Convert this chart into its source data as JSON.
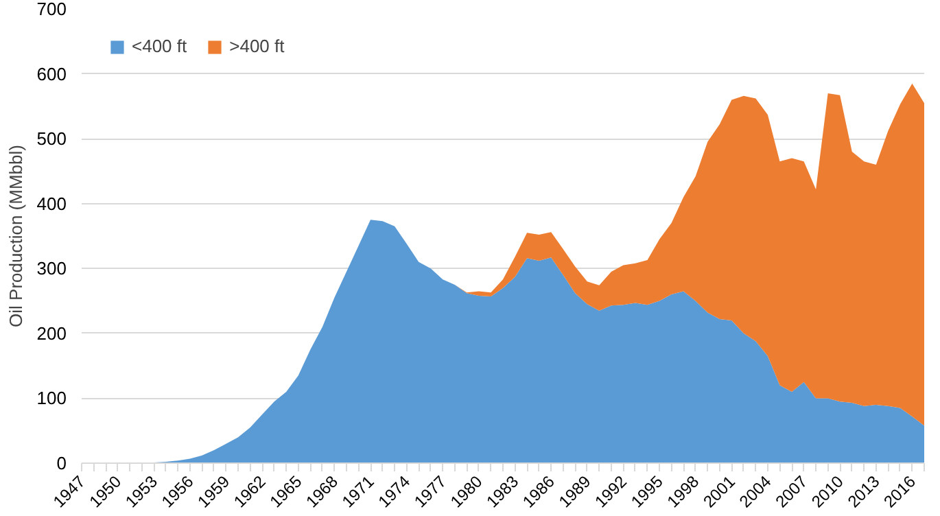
{
  "chart_data": {
    "type": "area",
    "stacked": true,
    "ylabel": "Oil Production (MMbbl)",
    "x": [
      1947,
      1948,
      1949,
      1950,
      1951,
      1952,
      1953,
      1954,
      1955,
      1956,
      1957,
      1958,
      1959,
      1960,
      1961,
      1962,
      1963,
      1964,
      1965,
      1966,
      1967,
      1968,
      1969,
      1970,
      1971,
      1972,
      1973,
      1974,
      1975,
      1976,
      1977,
      1978,
      1979,
      1980,
      1981,
      1982,
      1983,
      1984,
      1985,
      1986,
      1987,
      1988,
      1989,
      1990,
      1991,
      1992,
      1993,
      1994,
      1995,
      1996,
      1997,
      1998,
      1999,
      2000,
      2001,
      2002,
      2003,
      2004,
      2005,
      2006,
      2007,
      2008,
      2009,
      2010,
      2011,
      2012,
      2013,
      2014,
      2015,
      2016,
      2017
    ],
    "series": [
      {
        "name": "<400 ft",
        "color": "#5b9bd5",
        "values": [
          0,
          0,
          0,
          0,
          0,
          0,
          1,
          2,
          4,
          7,
          12,
          20,
          30,
          40,
          55,
          75,
          95,
          110,
          135,
          175,
          210,
          255,
          295,
          335,
          375,
          373,
          365,
          338,
          310,
          300,
          283,
          275,
          262,
          258,
          257,
          270,
          287,
          316,
          312,
          317,
          290,
          262,
          245,
          235,
          243,
          244,
          247,
          244,
          250,
          260,
          265,
          250,
          232,
          222,
          220,
          200,
          188,
          165,
          120,
          110,
          125,
          100,
          100,
          95,
          93,
          88,
          90,
          88,
          85,
          72,
          58
        ]
      },
      {
        "name": ">400 ft",
        "color": "#ed7d31",
        "values": [
          0,
          0,
          0,
          0,
          0,
          0,
          0,
          0,
          0,
          0,
          0,
          0,
          0,
          0,
          0,
          0,
          0,
          0,
          0,
          0,
          0,
          0,
          0,
          0,
          0,
          0,
          0,
          0,
          0,
          0,
          0,
          0,
          1,
          7,
          6,
          13,
          31,
          39,
          40,
          39,
          40,
          41,
          35,
          39,
          52,
          61,
          61,
          69,
          95,
          110,
          145,
          192,
          263,
          300,
          340,
          366,
          374,
          372,
          345,
          360,
          340,
          322,
          470,
          472,
          387,
          377,
          370,
          424,
          468,
          513,
          497
        ]
      }
    ],
    "xlim": [
      1947,
      2017
    ],
    "xticks": [
      1947,
      1950,
      1953,
      1956,
      1959,
      1962,
      1965,
      1968,
      1971,
      1974,
      1977,
      1980,
      1983,
      1986,
      1989,
      1992,
      1995,
      1998,
      2001,
      2004,
      2007,
      2010,
      2013,
      2016
    ],
    "ylim": [
      0,
      700
    ],
    "yticks": [
      0,
      100,
      200,
      300,
      400,
      500,
      600,
      700
    ],
    "grid": "y",
    "legend": "top left"
  }
}
